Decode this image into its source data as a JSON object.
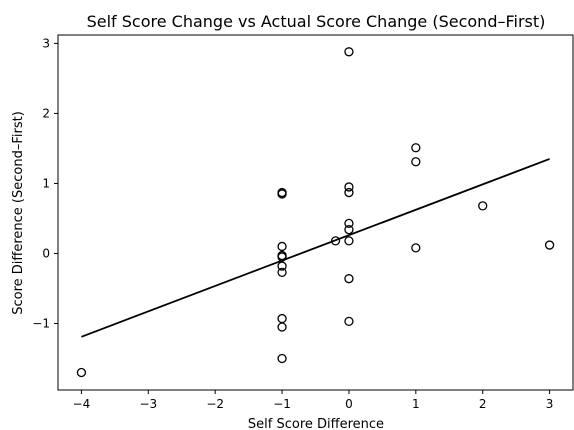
{
  "chart_data": {
    "type": "scatter",
    "title": "Self Score Change vs Actual Score Change (Second–First)",
    "xlabel": "Self Score Difference",
    "ylabel": "Score Difference (Second–First)",
    "xlim": [
      -4.35,
      3.35
    ],
    "ylim": [
      -1.95,
      3.12
    ],
    "xticks": [
      -4,
      -3,
      -2,
      -1,
      0,
      1,
      2,
      3
    ],
    "xtick_labels": [
      "−4",
      "−3",
      "−2",
      "−1",
      "0",
      "1",
      "2",
      "3"
    ],
    "yticks": [
      -1,
      0,
      1,
      2,
      3
    ],
    "ytick_labels": [
      "−1",
      "0",
      "1",
      "2",
      "3"
    ],
    "grid": false,
    "points": [
      {
        "x": -4,
        "y": -1.7
      },
      {
        "x": -1,
        "y": 0.85
      },
      {
        "x": -1,
        "y": 0.87
      },
      {
        "x": -1,
        "y": 0.1
      },
      {
        "x": -1,
        "y": -0.03
      },
      {
        "x": -1,
        "y": -0.05
      },
      {
        "x": -1,
        "y": -0.18
      },
      {
        "x": -1,
        "y": -0.27
      },
      {
        "x": -1,
        "y": -0.93
      },
      {
        "x": -1,
        "y": -1.05
      },
      {
        "x": -1,
        "y": -1.5
      },
      {
        "x": -0.2,
        "y": 0.18
      },
      {
        "x": 0,
        "y": 2.88
      },
      {
        "x": 0,
        "y": 0.95
      },
      {
        "x": 0,
        "y": 0.87
      },
      {
        "x": 0,
        "y": 0.43
      },
      {
        "x": 0,
        "y": 0.34
      },
      {
        "x": 0,
        "y": 0.18
      },
      {
        "x": 0,
        "y": -0.36
      },
      {
        "x": 0,
        "y": -0.97
      },
      {
        "x": 1,
        "y": 1.51
      },
      {
        "x": 1,
        "y": 1.31
      },
      {
        "x": 1,
        "y": 0.08
      },
      {
        "x": 2,
        "y": 0.68
      },
      {
        "x": 3,
        "y": 0.12
      }
    ],
    "fit_line": {
      "x": [
        -4,
        3
      ],
      "y": [
        -1.19,
        1.35
      ]
    },
    "marker_color": "#000000",
    "line_color": "#000000"
  }
}
